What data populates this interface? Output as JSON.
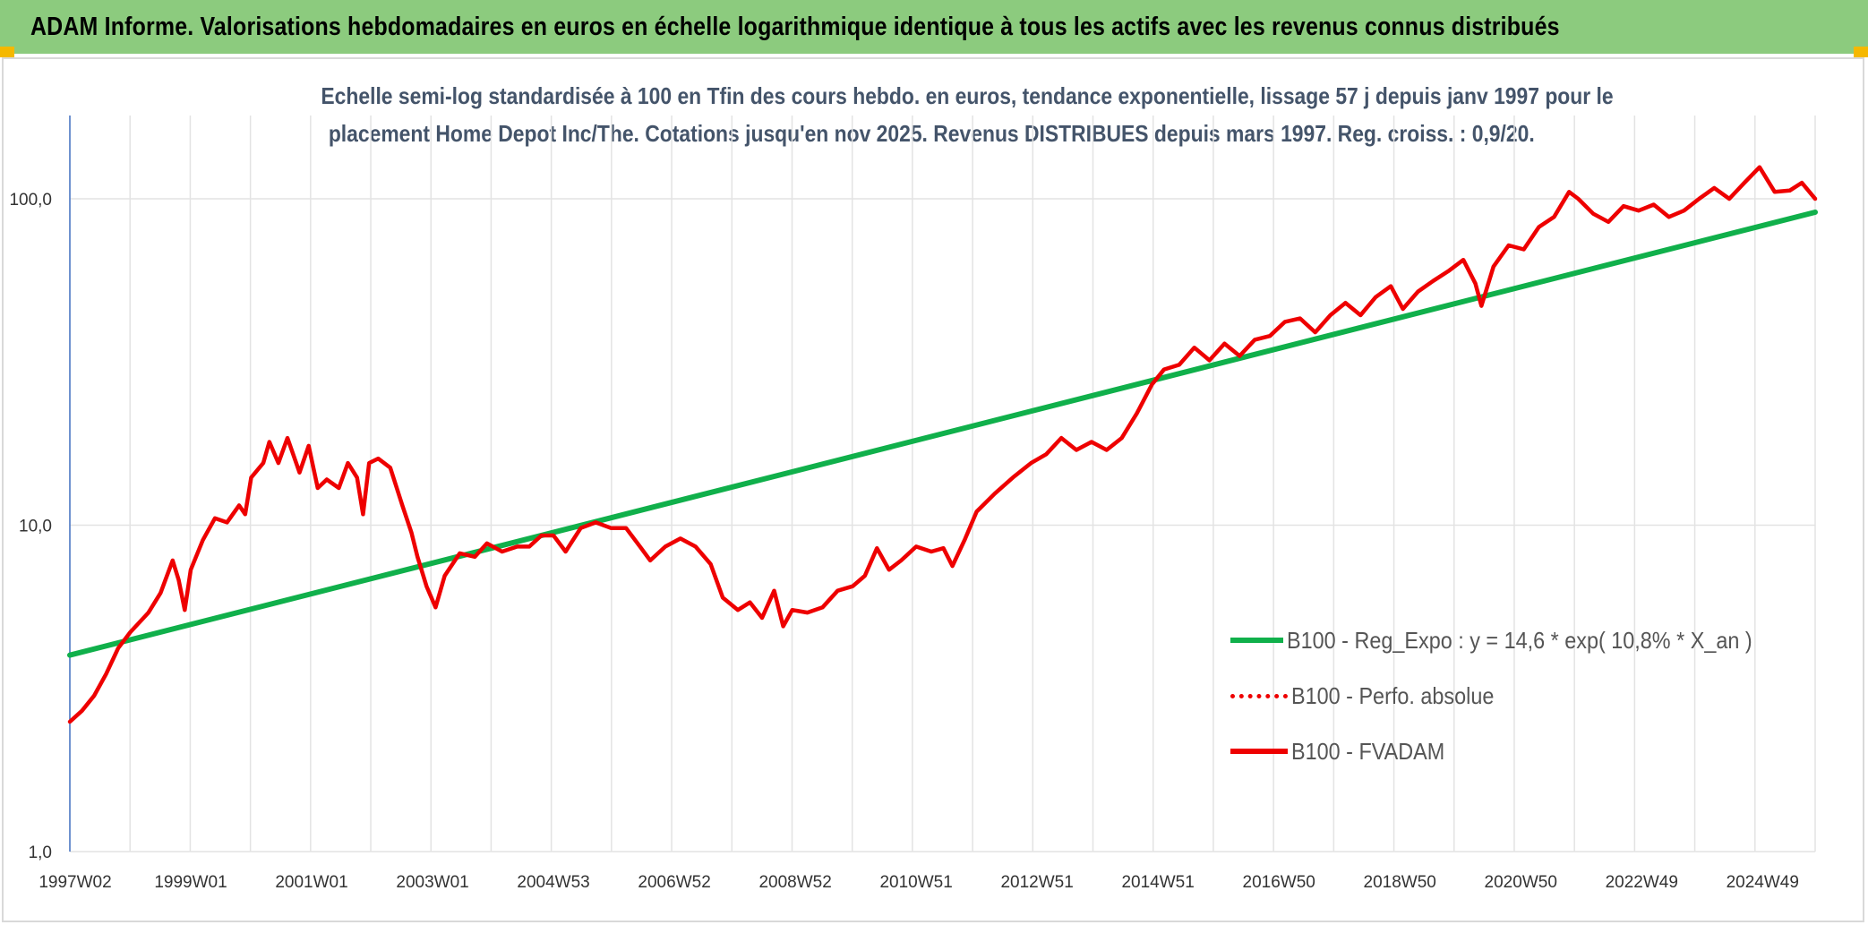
{
  "header": {
    "title": "ADAM Informe. Valorisations hebdomadaires en euros en échelle logarithmique identique à tous les actifs avec les revenus connus distribués"
  },
  "chart_data": {
    "type": "line",
    "title_line1": "Echelle semi-log standardisée à 100 en Tfin des cours hebdo. en euros, tendance exponentielle, lissage 57 j depuis janv 1997 pour le",
    "title_line2": "placement Home Depot Inc/The. Cotations jusqu'en nov 2025. Revenus DISTRIBUES depuis mars 1997. Reg. croiss. : 0,9/20.",
    "y_scale": "log",
    "ylim": [
      1,
      180
    ],
    "y_ticks": [
      {
        "value": 1,
        "label": "1,0"
      },
      {
        "value": 10,
        "label": "10,0"
      },
      {
        "value": 100,
        "label": "100,0"
      }
    ],
    "x_range": [
      1997.0,
      2025.87
    ],
    "x_ticks": [
      {
        "pos": 1997.0,
        "label": "1997W02"
      },
      {
        "pos": 1999.0,
        "label": "1999W01"
      },
      {
        "pos": 2001.0,
        "label": "2001W01"
      },
      {
        "pos": 2003.0,
        "label": "2003W01"
      },
      {
        "pos": 2005.0,
        "label": "2004W53"
      },
      {
        "pos": 2007.0,
        "label": "2006W52"
      },
      {
        "pos": 2009.0,
        "label": "2008W52"
      },
      {
        "pos": 2011.0,
        "label": "2010W51"
      },
      {
        "pos": 2013.0,
        "label": "2012W51"
      },
      {
        "pos": 2015.0,
        "label": "2014W51"
      },
      {
        "pos": 2017.0,
        "label": "2016W50"
      },
      {
        "pos": 2019.0,
        "label": "2018W50"
      },
      {
        "pos": 2021.0,
        "label": "2020W50"
      },
      {
        "pos": 2023.0,
        "label": "2022W49"
      },
      {
        "pos": 2025.0,
        "label": "2024W49"
      }
    ],
    "grid": "vertical and horizontal",
    "legend_position": "right-bottom",
    "series": [
      {
        "name": "B100 - Reg_Expo : y = 14,6 * exp( 10,8% *  X_an )",
        "color": "#10b04b",
        "style": "solid",
        "points": [
          [
            1997.0,
            4.0
          ],
          [
            2025.87,
            91.0
          ]
        ]
      },
      {
        "name": "B100 - Perfo. absolue",
        "color": "#ee0000",
        "style": "dotted",
        "points": []
      },
      {
        "name": "B100 - FVADAM",
        "color": "#ee0000",
        "style": "solid",
        "points": [
          [
            1997.0,
            2.5
          ],
          [
            1997.2,
            2.7
          ],
          [
            1997.4,
            3.0
          ],
          [
            1997.6,
            3.5
          ],
          [
            1997.8,
            4.2
          ],
          [
            1998.0,
            4.7
          ],
          [
            1998.3,
            5.4
          ],
          [
            1998.5,
            6.2
          ],
          [
            1998.7,
            7.8
          ],
          [
            1998.8,
            6.8
          ],
          [
            1998.9,
            5.5
          ],
          [
            1999.0,
            7.3
          ],
          [
            1999.2,
            9.0
          ],
          [
            1999.4,
            10.5
          ],
          [
            1999.6,
            10.2
          ],
          [
            1999.8,
            11.5
          ],
          [
            1999.9,
            10.8
          ],
          [
            2000.0,
            14.0
          ],
          [
            2000.2,
            15.5
          ],
          [
            2000.3,
            18.0
          ],
          [
            2000.45,
            15.5
          ],
          [
            2000.6,
            18.5
          ],
          [
            2000.8,
            14.5
          ],
          [
            2000.95,
            17.5
          ],
          [
            2001.1,
            13.0
          ],
          [
            2001.25,
            13.8
          ],
          [
            2001.45,
            13.0
          ],
          [
            2001.6,
            15.5
          ],
          [
            2001.75,
            14.0
          ],
          [
            2001.85,
            10.8
          ],
          [
            2001.95,
            15.5
          ],
          [
            2002.1,
            16.0
          ],
          [
            2002.3,
            15.0
          ],
          [
            2002.5,
            11.5
          ],
          [
            2002.65,
            9.5
          ],
          [
            2002.75,
            8.0
          ],
          [
            2002.9,
            6.5
          ],
          [
            2003.05,
            5.6
          ],
          [
            2003.2,
            7.0
          ],
          [
            2003.45,
            8.2
          ],
          [
            2003.7,
            8.0
          ],
          [
            2003.9,
            8.8
          ],
          [
            2004.15,
            8.3
          ],
          [
            2004.4,
            8.6
          ],
          [
            2004.6,
            8.6
          ],
          [
            2004.8,
            9.3
          ],
          [
            2005.0,
            9.3
          ],
          [
            2005.2,
            8.3
          ],
          [
            2005.45,
            9.8
          ],
          [
            2005.7,
            10.2
          ],
          [
            2005.95,
            9.8
          ],
          [
            2006.2,
            9.8
          ],
          [
            2006.45,
            8.5
          ],
          [
            2006.6,
            7.8
          ],
          [
            2006.85,
            8.6
          ],
          [
            2007.1,
            9.1
          ],
          [
            2007.35,
            8.6
          ],
          [
            2007.6,
            7.6
          ],
          [
            2007.8,
            6.0
          ],
          [
            2008.05,
            5.5
          ],
          [
            2008.25,
            5.8
          ],
          [
            2008.45,
            5.2
          ],
          [
            2008.65,
            6.3
          ],
          [
            2008.8,
            4.9
          ],
          [
            2008.95,
            5.5
          ],
          [
            2009.2,
            5.4
          ],
          [
            2009.45,
            5.6
          ],
          [
            2009.7,
            6.3
          ],
          [
            2009.95,
            6.5
          ],
          [
            2010.15,
            7.0
          ],
          [
            2010.35,
            8.5
          ],
          [
            2010.55,
            7.3
          ],
          [
            2010.75,
            7.8
          ],
          [
            2011.0,
            8.6
          ],
          [
            2011.25,
            8.3
          ],
          [
            2011.45,
            8.5
          ],
          [
            2011.6,
            7.5
          ],
          [
            2011.8,
            9.0
          ],
          [
            2012.0,
            11.0
          ],
          [
            2012.3,
            12.5
          ],
          [
            2012.6,
            14.0
          ],
          [
            2012.9,
            15.5
          ],
          [
            2013.15,
            16.5
          ],
          [
            2013.4,
            18.5
          ],
          [
            2013.65,
            17.0
          ],
          [
            2013.9,
            18.0
          ],
          [
            2014.15,
            17.0
          ],
          [
            2014.4,
            18.5
          ],
          [
            2014.65,
            22.0
          ],
          [
            2014.9,
            27.0
          ],
          [
            2015.1,
            30.0
          ],
          [
            2015.35,
            31.0
          ],
          [
            2015.6,
            35.0
          ],
          [
            2015.85,
            32.0
          ],
          [
            2016.1,
            36.0
          ],
          [
            2016.35,
            33.0
          ],
          [
            2016.6,
            37.0
          ],
          [
            2016.85,
            38.0
          ],
          [
            2017.1,
            42.0
          ],
          [
            2017.35,
            43.0
          ],
          [
            2017.6,
            39.0
          ],
          [
            2017.85,
            44.0
          ],
          [
            2018.1,
            48.0
          ],
          [
            2018.35,
            44.0
          ],
          [
            2018.6,
            50.0
          ],
          [
            2018.85,
            54.0
          ],
          [
            2019.05,
            46.0
          ],
          [
            2019.3,
            52.0
          ],
          [
            2019.55,
            56.0
          ],
          [
            2019.8,
            60.0
          ],
          [
            2020.05,
            65.0
          ],
          [
            2020.25,
            55.0
          ],
          [
            2020.35,
            47.0
          ],
          [
            2020.55,
            62.0
          ],
          [
            2020.8,
            72.0
          ],
          [
            2021.05,
            70.0
          ],
          [
            2021.3,
            82.0
          ],
          [
            2021.55,
            88.0
          ],
          [
            2021.8,
            105.0
          ],
          [
            2021.95,
            100.0
          ],
          [
            2022.2,
            90.0
          ],
          [
            2022.45,
            85.0
          ],
          [
            2022.7,
            95.0
          ],
          [
            2022.95,
            92.0
          ],
          [
            2023.2,
            96.0
          ],
          [
            2023.45,
            88.0
          ],
          [
            2023.7,
            92.0
          ],
          [
            2023.95,
            100.0
          ],
          [
            2024.2,
            108.0
          ],
          [
            2024.45,
            100.0
          ],
          [
            2024.7,
            112.0
          ],
          [
            2024.95,
            125.0
          ],
          [
            2025.2,
            105.0
          ],
          [
            2025.45,
            106.0
          ],
          [
            2025.65,
            112.0
          ],
          [
            2025.87,
            100.0
          ]
        ]
      }
    ]
  }
}
